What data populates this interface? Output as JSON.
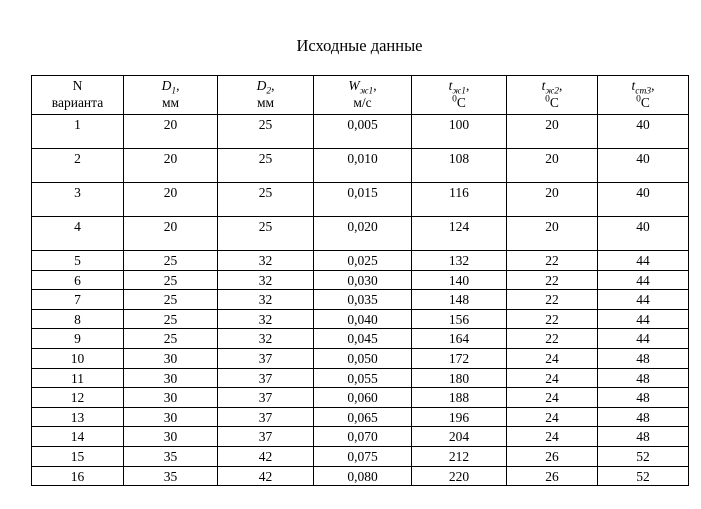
{
  "title": "Исходные данные",
  "colors": {
    "background": "#ffffff",
    "text": "#000000",
    "border": "#000000"
  },
  "table": {
    "headers": [
      {
        "line1": "N",
        "line2": "варианта"
      },
      {
        "sym": "D",
        "sub": "1",
        "comma": ",",
        "unit": "мм"
      },
      {
        "sym": "D",
        "sub": "2",
        "comma": ",",
        "unit": "мм"
      },
      {
        "sym": "W",
        "sub": "ж1",
        "comma": ",",
        "unit": "м/с"
      },
      {
        "sym": "t",
        "sub": "ж1",
        "comma": ",",
        "unit_sup": "0",
        "unit": "C"
      },
      {
        "sym": "t",
        "sub": "ж2",
        "comma": ",",
        "unit_sup": "0",
        "unit": "C"
      },
      {
        "sym": "t",
        "sub": "ст3",
        "comma": ",",
        "unit_sup": "0",
        "unit": "C"
      }
    ],
    "rows": [
      [
        "1",
        "20",
        "25",
        "0,005",
        "100",
        "20",
        "40"
      ],
      [
        "2",
        "20",
        "25",
        "0,010",
        "108",
        "20",
        "40"
      ],
      [
        "3",
        "20",
        "25",
        "0,015",
        "116",
        "20",
        "40"
      ],
      [
        "4",
        "20",
        "25",
        "0,020",
        "124",
        "20",
        "40"
      ],
      [
        "5",
        "25",
        "32",
        "0,025",
        "132",
        "22",
        "44"
      ],
      [
        "6",
        "25",
        "32",
        "0,030",
        "140",
        "22",
        "44"
      ],
      [
        "7",
        "25",
        "32",
        "0,035",
        "148",
        "22",
        "44"
      ],
      [
        "8",
        "25",
        "32",
        "0,040",
        "156",
        "22",
        "44"
      ],
      [
        "9",
        "25",
        "32",
        "0,045",
        "164",
        "22",
        "44"
      ],
      [
        "10",
        "30",
        "37",
        "0,050",
        "172",
        "24",
        "48"
      ],
      [
        "11",
        "30",
        "37",
        "0,055",
        "180",
        "24",
        "48"
      ],
      [
        "12",
        "30",
        "37",
        "0,060",
        "188",
        "24",
        "48"
      ],
      [
        "13",
        "30",
        "37",
        "0,065",
        "196",
        "24",
        "48"
      ],
      [
        "14",
        "30",
        "37",
        "0,070",
        "204",
        "24",
        "48"
      ],
      [
        "15",
        "35",
        "42",
        "0,075",
        "212",
        "26",
        "52"
      ],
      [
        "16",
        "35",
        "42",
        "0,080",
        "220",
        "26",
        "52"
      ]
    ]
  }
}
